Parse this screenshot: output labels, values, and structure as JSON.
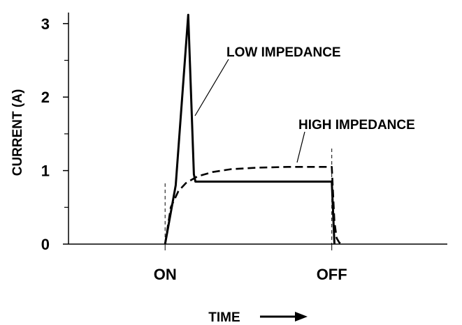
{
  "chart_data": {
    "type": "line",
    "xlabel": "TIME",
    "ylabel": "CURRENT (A)",
    "ylim": [
      0,
      3.15
    ],
    "xlim": [
      0,
      10
    ],
    "y_ticks": [
      {
        "value": 0,
        "label": "0"
      },
      {
        "value": 1,
        "label": "1"
      },
      {
        "value": 2,
        "label": "2"
      },
      {
        "value": 3,
        "label": "3"
      }
    ],
    "x_markers": [
      {
        "value": 2.55,
        "label": "ON"
      },
      {
        "value": 6.95,
        "label": "OFF"
      }
    ],
    "series": [
      {
        "name": "LOW IMPEDANCE",
        "style": "solid",
        "x": [
          2.55,
          2.83,
          3.16,
          3.31,
          3.35,
          3.95,
          5.5,
          6.95,
          7.02
        ],
        "y": [
          0,
          0.8,
          3.12,
          0.95,
          0.85,
          0.85,
          0.85,
          0.85,
          0.0
        ]
      },
      {
        "name": "HIGH IMPEDANCE",
        "style": "dashed",
        "x": [
          2.55,
          2.7,
          2.9,
          3.1,
          3.4,
          3.8,
          4.3,
          5.0,
          5.8,
          6.95,
          7.02,
          7.08,
          7.15,
          7.25
        ],
        "y": [
          0,
          0.5,
          0.72,
          0.83,
          0.92,
          0.98,
          1.02,
          1.04,
          1.05,
          1.05,
          0.3,
          0.08,
          0.02,
          0.0
        ]
      }
    ],
    "annotations": [
      {
        "text": "LOW IMPEDANCE",
        "series": "LOW IMPEDANCE"
      },
      {
        "text": "HIGH IMPEDANCE",
        "series": "HIGH IMPEDANCE"
      }
    ],
    "grid": false,
    "legend": "none"
  }
}
